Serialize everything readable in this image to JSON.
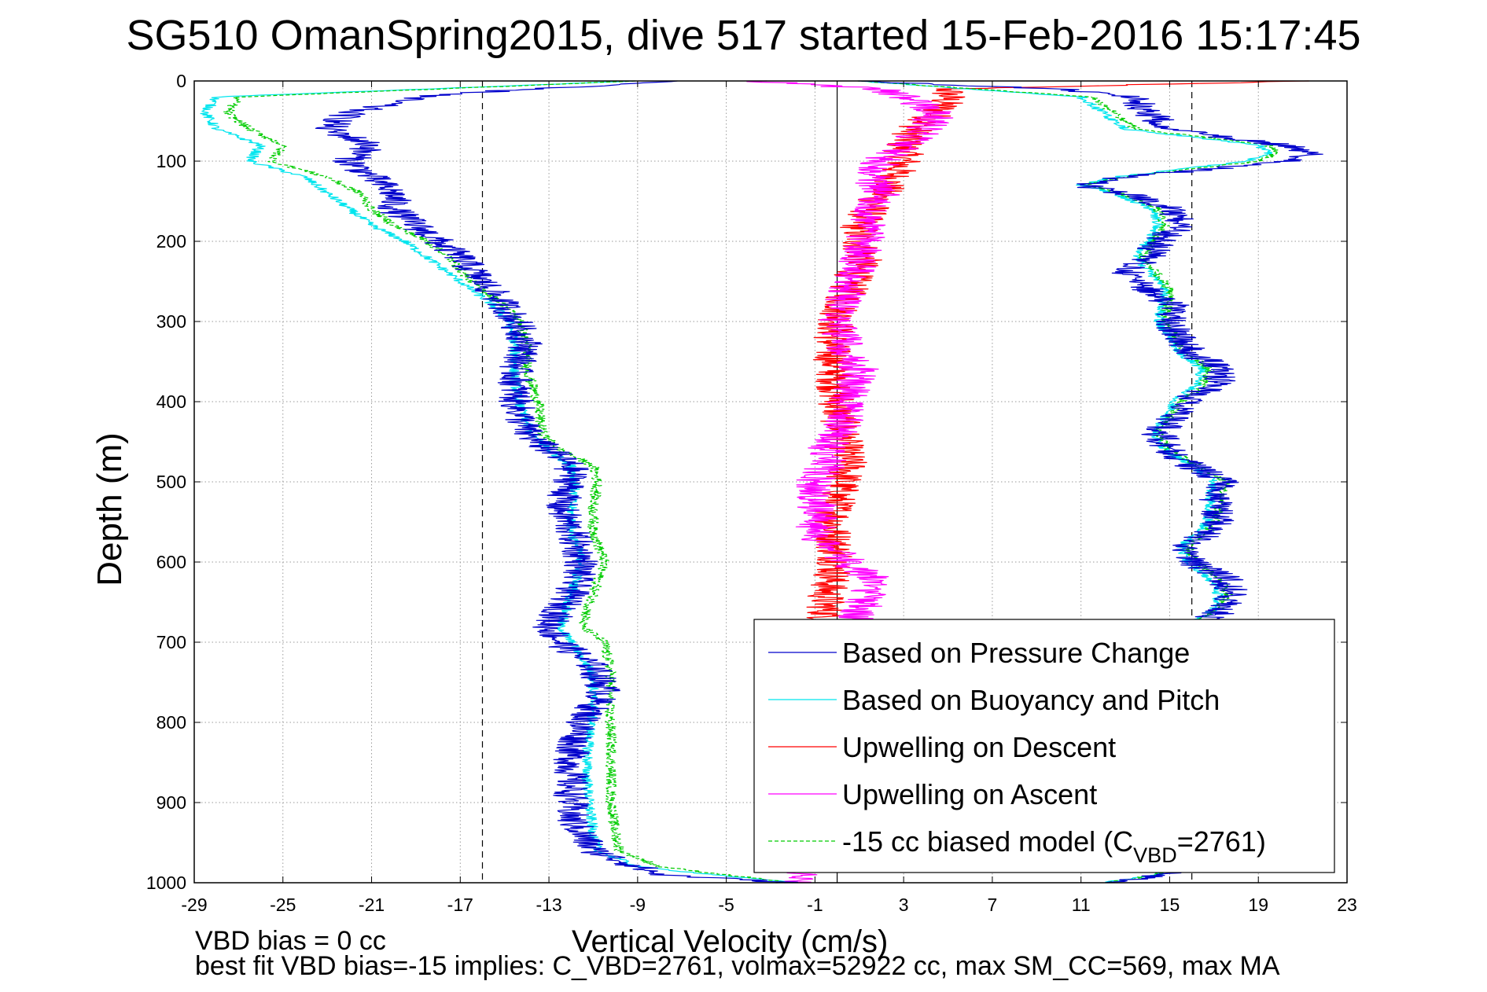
{
  "title": "SG510 OmanSpring2015, dive 517 started 15-Feb-2016 15:17:45",
  "footer": {
    "line1": "VBD bias = 0 cc",
    "line2": "best fit VBD bias=-15 implies: C_VBD=2761, volmax=52922 cc, max SM_CC=569, max MA"
  },
  "colors": {
    "pressure": "#0000cc",
    "buoyancy": "#00e5ee",
    "descent": "#ff0000",
    "ascent": "#ff00ff",
    "model": "#00cc00"
  },
  "chart_data": {
    "type": "line",
    "title": "SG510 OmanSpring2015, dive 517 started 15-Feb-2016 15:17:45",
    "xlabel": "Vertical Velocity (cm/s)",
    "ylabel": "Depth (m)",
    "xlim": [
      -29,
      23
    ],
    "ylim": [
      1000,
      0
    ],
    "y_reversed": true,
    "grid": true,
    "xticks": [
      "-29",
      "-25",
      "-21",
      "-17",
      "-13",
      "-9",
      "-5",
      "-1",
      "3",
      "7",
      "11",
      "15",
      "19",
      "23"
    ],
    "yticks": [
      "0",
      "100",
      "200",
      "300",
      "400",
      "500",
      "600",
      "700",
      "800",
      "900",
      "1000"
    ],
    "reference_lines": [
      {
        "style": "dashed",
        "x": -16
      },
      {
        "style": "solid",
        "x": 0
      },
      {
        "style": "dashed",
        "x": 16
      }
    ],
    "legend": {
      "position": "bottom-right",
      "entries": [
        {
          "key": "pressure",
          "label": "Based on Pressure Change",
          "style": "solid"
        },
        {
          "key": "buoyancy",
          "label": "Based on Buoyancy and Pitch",
          "style": "solid"
        },
        {
          "key": "descent",
          "label": "Upwelling on Descent",
          "style": "solid"
        },
        {
          "key": "ascent",
          "label": "Upwelling on Ascent",
          "style": "solid"
        },
        {
          "key": "model",
          "label_pre": "-15 cc biased model (C",
          "label_sub": "VBD",
          "label_post": "=2761)",
          "style": "dashed"
        }
      ]
    },
    "series": [
      {
        "key": "pressure",
        "name": "Based on Pressure Change",
        "descent": {
          "depth": [
            0,
            10,
            20,
            40,
            60,
            80,
            100,
            120,
            140,
            160,
            180,
            200,
            220,
            250,
            280,
            300,
            330,
            360,
            400,
            440,
            460,
            480,
            500,
            530,
            560,
            600,
            640,
            680,
            700,
            730,
            760,
            800,
            840,
            880,
            920,
            960,
            980,
            990,
            1000
          ],
          "velocity": [
            -7,
            -14,
            -19,
            -22,
            -23,
            -21,
            -22,
            -21,
            -20,
            -20,
            -19,
            -18,
            -17,
            -16,
            -15,
            -14.5,
            -14,
            -14.5,
            -14.5,
            -14,
            -13,
            -12,
            -12,
            -12.5,
            -12,
            -11.5,
            -12,
            -13,
            -12.5,
            -11,
            -10.5,
            -11.5,
            -12,
            -12,
            -12,
            -11,
            -9,
            -8,
            -2
          ]
        },
        "ascent": {
          "depth": [
            1000,
            990,
            980,
            960,
            920,
            880,
            840,
            800,
            760,
            720,
            680,
            660,
            640,
            620,
            600,
            580,
            560,
            540,
            520,
            500,
            480,
            460,
            440,
            420,
            400,
            380,
            360,
            340,
            320,
            300,
            280,
            260,
            240,
            220,
            200,
            180,
            160,
            140,
            130,
            120,
            100,
            90,
            80,
            60,
            40,
            20,
            10,
            0
          ],
          "velocity": [
            12,
            15,
            15.2,
            15.4,
            15.4,
            15.5,
            15.5,
            15.6,
            15.6,
            15.7,
            16,
            17.5,
            17.8,
            17.5,
            16,
            15.6,
            17,
            17.2,
            17,
            17.5,
            16,
            15,
            14.5,
            15.2,
            15.6,
            17,
            17.5,
            16,
            15.5,
            15,
            15.2,
            14,
            13,
            14,
            14.5,
            15.5,
            15,
            13,
            11,
            13,
            20.5,
            21.5,
            20,
            15,
            14,
            13.5,
            10,
            1
          ]
        }
      },
      {
        "key": "buoyancy",
        "name": "Based on Buoyancy and Pitch",
        "descent": {
          "depth": [
            0,
            20,
            40,
            60,
            80,
            100,
            120,
            140,
            160,
            180,
            200,
            220,
            250,
            280,
            300,
            330,
            360,
            400,
            440,
            460,
            480,
            500,
            530,
            560,
            600,
            640,
            680,
            700,
            740,
            780,
            820,
            860,
            900,
            940,
            960,
            980,
            1000
          ],
          "velocity": [
            -9,
            -28,
            -28.5,
            -28,
            -26,
            -26.5,
            -24,
            -23,
            -22,
            -21,
            -19.5,
            -18.5,
            -17,
            -15.5,
            -14.8,
            -14.5,
            -14.6,
            -14.4,
            -13.8,
            -13,
            -12,
            -11.8,
            -12,
            -12,
            -11.5,
            -12,
            -12.5,
            -12,
            -11,
            -11,
            -11.2,
            -11.3,
            -11.2,
            -11,
            -10.8,
            -9,
            -2
          ]
        },
        "ascent": {
          "depth": [
            1000,
            990,
            960,
            920,
            880,
            840,
            800,
            760,
            720,
            680,
            660,
            640,
            620,
            600,
            580,
            560,
            540,
            520,
            500,
            480,
            460,
            440,
            420,
            400,
            380,
            360,
            340,
            300,
            260,
            220,
            180,
            160,
            140,
            130,
            120,
            100,
            90,
            80,
            60,
            40,
            20,
            0
          ],
          "velocity": [
            12,
            14.5,
            15,
            15,
            15,
            15,
            15.1,
            15.2,
            15.3,
            15.8,
            17,
            17.2,
            16.8,
            15.8,
            15.5,
            16.5,
            16.8,
            16.8,
            17,
            16,
            14.8,
            14.3,
            14.8,
            15.2,
            16.2,
            16.5,
            15.5,
            14.5,
            14.8,
            13.5,
            14.5,
            14.2,
            12.5,
            11,
            12.5,
            18.5,
            19.5,
            19,
            13,
            12,
            11,
            1
          ]
        }
      },
      {
        "key": "descent",
        "name": "Upwelling on Descent",
        "descent": {
          "depth": [
            0,
            10,
            20,
            40,
            60,
            80,
            100,
            120,
            140,
            160,
            180,
            200,
            220,
            240,
            260,
            280,
            300,
            330,
            360,
            400,
            440,
            480,
            520,
            560,
            600,
            640,
            680,
            700
          ],
          "velocity": [
            21,
            5,
            5,
            4.5,
            3.5,
            3,
            3,
            2.5,
            2,
            1.5,
            1,
            1,
            1.2,
            0.8,
            0.5,
            0.2,
            0,
            -0.3,
            -0.1,
            0,
            0.2,
            0.5,
            0,
            -0.2,
            0,
            -0.5,
            -0.5,
            -0.3
          ]
        }
      },
      {
        "key": "ascent",
        "name": "Upwelling on Ascent",
        "ascent": {
          "depth": [
            1000,
            980,
            960,
            920,
            880,
            840,
            800,
            760,
            720,
            680,
            660,
            640,
            620,
            600,
            580,
            560,
            540,
            520,
            500,
            480,
            460,
            440,
            420,
            400,
            380,
            360,
            340,
            300,
            260,
            220,
            180,
            160,
            140,
            120,
            100,
            80,
            60,
            40,
            20,
            10,
            0
          ],
          "velocity": [
            -2,
            -1.5,
            -1,
            -0.8,
            -0.5,
            -0.3,
            -0.2,
            -0.5,
            -0.5,
            0.5,
            1,
            1.5,
            1.5,
            0.5,
            -0.5,
            -1,
            -0.8,
            -1,
            -1,
            -0.5,
            -0.5,
            0,
            0.5,
            0.3,
            0.8,
            1,
            0.5,
            0,
            0.5,
            1,
            1.5,
            1.5,
            2,
            1.5,
            2,
            3,
            4,
            4.5,
            3,
            2,
            -4
          ]
        }
      },
      {
        "key": "model",
        "name": "-15 cc biased model (CVBD=2761)",
        "descent": {
          "depth": [
            0,
            20,
            40,
            60,
            80,
            100,
            120,
            140,
            160,
            180,
            200,
            220,
            250,
            280,
            300,
            330,
            360,
            400,
            440,
            460,
            480,
            500,
            530,
            560,
            600,
            640,
            680,
            700,
            740,
            780,
            820,
            860,
            900,
            940,
            960,
            980,
            1000
          ],
          "velocity": [
            -9,
            -27,
            -27.5,
            -26.5,
            -25,
            -25.5,
            -23,
            -21.5,
            -21,
            -20,
            -18.5,
            -17.5,
            -16.5,
            -15,
            -14.3,
            -14,
            -14,
            -13.5,
            -13.3,
            -12.5,
            -11,
            -10.8,
            -11,
            -11,
            -10.5,
            -11,
            -11.5,
            -10.5,
            -10.2,
            -10.3,
            -10.2,
            -10.2,
            -10.2,
            -10,
            -9.8,
            -8,
            -2
          ]
        },
        "ascent": {
          "depth": [
            1000,
            990,
            960,
            920,
            880,
            840,
            800,
            760,
            720,
            680,
            660,
            640,
            620,
            600,
            580,
            560,
            540,
            520,
            500,
            480,
            460,
            440,
            420,
            400,
            380,
            360,
            340,
            300,
            260,
            220,
            180,
            160,
            140,
            130,
            120,
            100,
            90,
            80,
            60,
            40,
            20,
            0
          ],
          "velocity": [
            12,
            14.5,
            15,
            15.1,
            15.1,
            15.2,
            15.3,
            15.4,
            15.5,
            16,
            17.2,
            17.6,
            17.3,
            16.2,
            15.8,
            16.8,
            17.2,
            17.4,
            17.6,
            16.3,
            15,
            14.5,
            15,
            15.5,
            16.5,
            16.8,
            15.8,
            14.8,
            15,
            13.8,
            14.8,
            14.5,
            12.8,
            11.2,
            12.8,
            19,
            19.8,
            19.5,
            13.5,
            12.5,
            11.5,
            1
          ]
        }
      }
    ]
  }
}
